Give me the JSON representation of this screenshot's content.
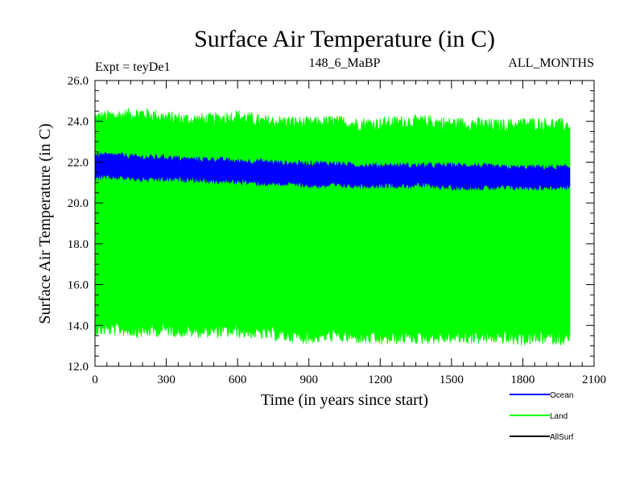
{
  "chart_data": {
    "type": "area",
    "title": "Surface Air Temperature (in C)",
    "subtitle_left": "Expt = teyDe1",
    "subtitle_center": "148_6_MaBP",
    "subtitle_right": "ALL_MONTHS",
    "xlabel": "Time (in years since start)",
    "ylabel": "Surface Air Temperature (in C)",
    "xlim": [
      0,
      2100
    ],
    "ylim": [
      12.0,
      26.0
    ],
    "x_ticks": [
      0,
      300,
      600,
      900,
      1200,
      1500,
      1800,
      2100
    ],
    "x_tick_labels": [
      "0",
      "300",
      "600",
      "900",
      "1200",
      "1500",
      "1800",
      "2100"
    ],
    "y_ticks": [
      12,
      14,
      16,
      18,
      20,
      22,
      24,
      26
    ],
    "y_tick_labels": [
      "12.0",
      "14.0",
      "16.0",
      "18.0",
      "20.0",
      "22.0",
      "24.0",
      "26.0"
    ],
    "legend_position": "bottom-right, below plot",
    "series": [
      {
        "name": "Land",
        "color": "#00ff00",
        "x": [
          0,
          100,
          200,
          300,
          400,
          500,
          600,
          700,
          800,
          900,
          1000,
          1100,
          1200,
          1300,
          1400,
          1500,
          1600,
          1700,
          1800,
          1900,
          2000
        ],
        "upper": [
          24.1,
          24.2,
          24.3,
          24.1,
          24.0,
          24.0,
          24.2,
          23.9,
          23.9,
          23.8,
          23.9,
          23.8,
          23.8,
          23.9,
          23.9,
          23.8,
          23.8,
          23.7,
          23.8,
          23.8,
          23.7
        ],
        "lower": [
          13.9,
          13.9,
          13.8,
          13.9,
          13.8,
          13.8,
          13.8,
          13.7,
          13.6,
          13.5,
          13.6,
          13.5,
          13.4,
          13.5,
          13.5,
          13.5,
          13.5,
          13.5,
          13.4,
          13.5,
          13.4
        ]
      },
      {
        "name": "Ocean",
        "color": "#0000ff",
        "x": [
          0,
          100,
          200,
          300,
          400,
          500,
          600,
          700,
          800,
          900,
          1000,
          1100,
          1200,
          1300,
          1400,
          1500,
          1600,
          1700,
          1800,
          1900,
          2000
        ],
        "upper": [
          22.3,
          22.3,
          22.2,
          22.2,
          22.1,
          22.1,
          22.0,
          22.0,
          21.9,
          21.9,
          21.9,
          21.8,
          21.8,
          21.8,
          21.8,
          21.8,
          21.8,
          21.7,
          21.7,
          21.7,
          21.7
        ],
        "lower": [
          21.3,
          21.3,
          21.2,
          21.2,
          21.2,
          21.1,
          21.1,
          21.0,
          21.0,
          20.9,
          20.9,
          20.9,
          20.9,
          20.9,
          20.9,
          20.8,
          20.8,
          20.8,
          20.8,
          20.8,
          20.8
        ]
      },
      {
        "name": "AllSurf",
        "color": "#000000",
        "x": [],
        "upper": [],
        "lower": []
      }
    ]
  }
}
